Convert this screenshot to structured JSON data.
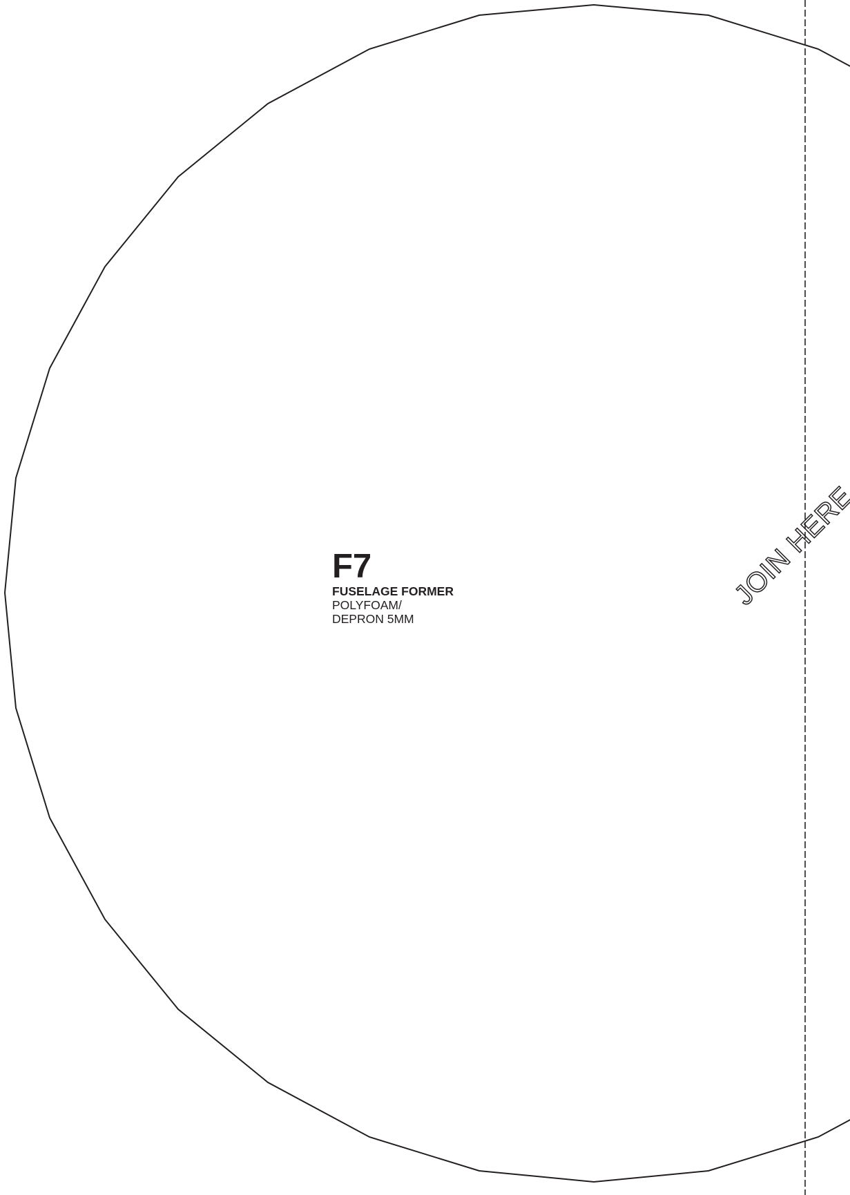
{
  "part": {
    "code": "F7",
    "name": "FUSELAGE FORMER",
    "material_line1": "POLYFOAM/",
    "material_line2": "DEPRON 5MM"
  },
  "join_annotation": {
    "text": "JOIN HERE"
  },
  "colors": {
    "stroke": "#231f20",
    "background": "#ffffff"
  }
}
